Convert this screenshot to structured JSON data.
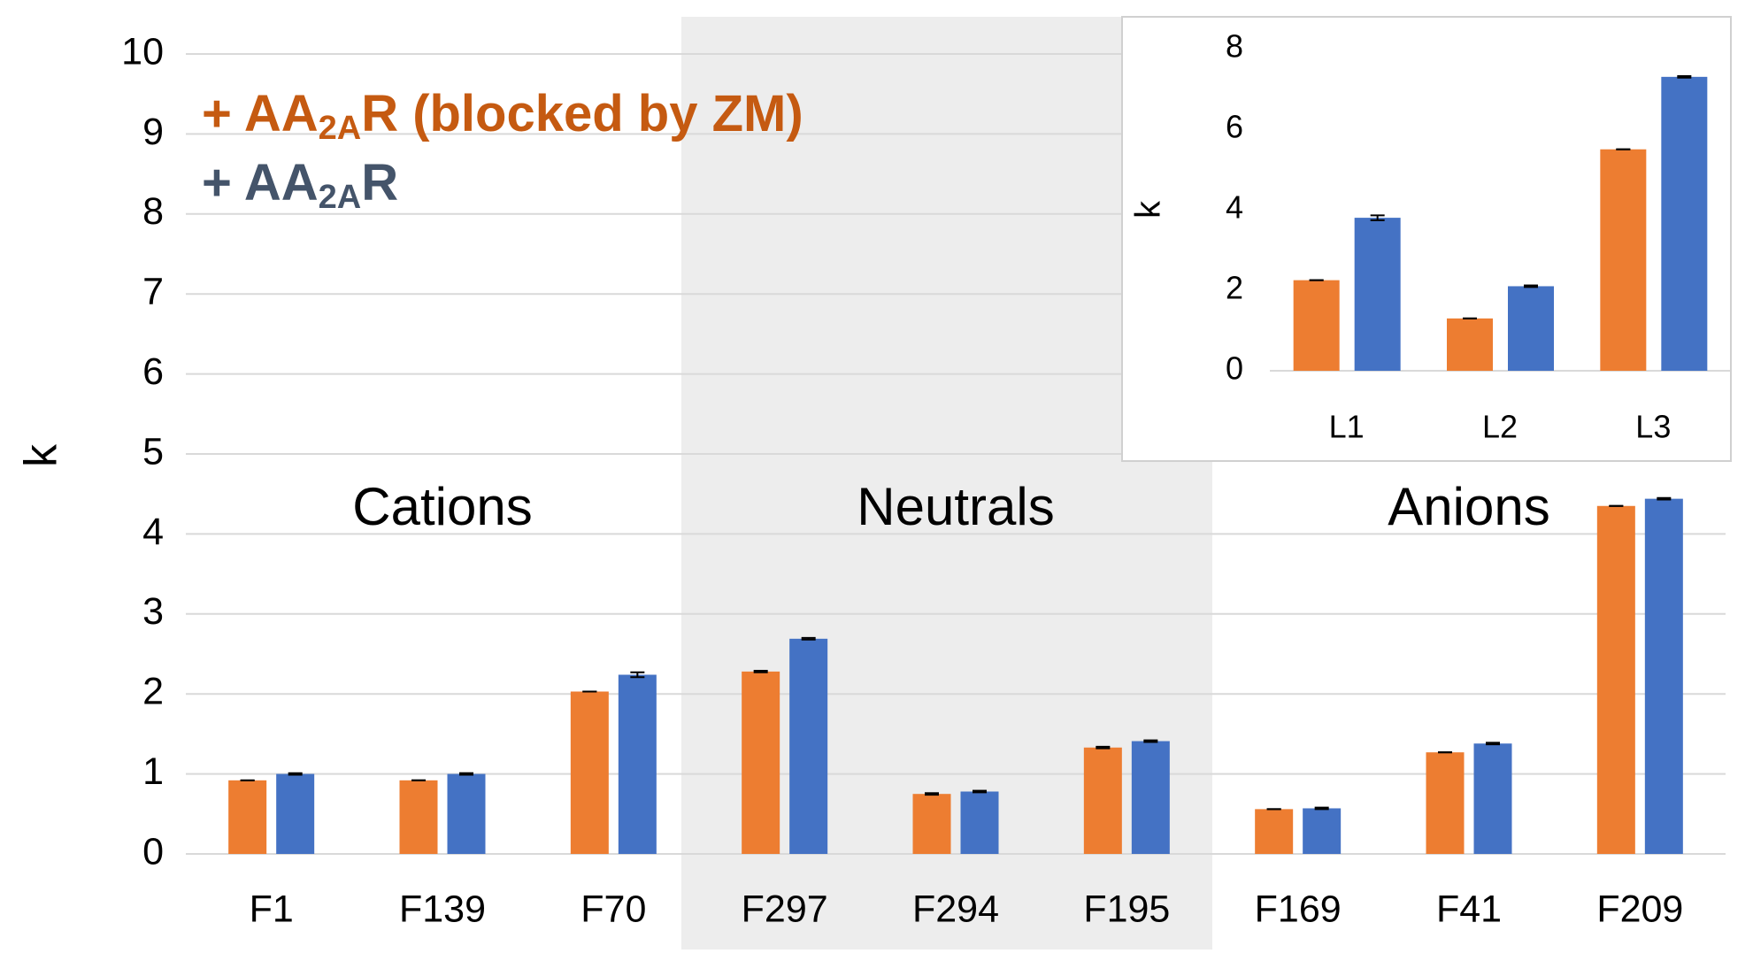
{
  "chart_data": [
    {
      "type": "bar",
      "y_label": "k",
      "categories": [
        "F1",
        "F139",
        "F70",
        "F297",
        "F294",
        "F195",
        "F169",
        "F41",
        "F209"
      ],
      "groups": [
        {
          "label": "Cations",
          "shaded": false
        },
        {
          "label": "Neutrals",
          "shaded": true
        },
        {
          "label": "Anions",
          "shaded": false
        }
      ],
      "series": [
        {
          "name": "+ AA2AR (blocked by ZM)",
          "subscript": "2A",
          "color": "#ed7d31",
          "values": [
            0.92,
            0.92,
            2.03,
            2.28,
            0.75,
            1.33,
            0.56,
            1.27,
            4.35
          ],
          "errors": [
            0,
            0,
            0,
            0.01,
            0.01,
            0.01,
            0,
            0,
            0
          ]
        },
        {
          "name": "+ AA2AR",
          "subscript": "2A",
          "color": "#4472c4",
          "values": [
            1.0,
            1.0,
            2.24,
            2.69,
            0.78,
            1.41,
            0.57,
            1.38,
            4.44
          ],
          "errors": [
            0.01,
            0.01,
            0.03,
            0.01,
            0.01,
            0.01,
            0.01,
            0.01,
            0.01
          ]
        }
      ],
      "legend_colors": [
        "#c55a11",
        "#44546a"
      ],
      "ylim": [
        0,
        10
      ],
      "yticks": [
        0,
        1,
        2,
        3,
        4,
        5,
        6,
        7,
        8,
        9,
        10
      ],
      "grid": true
    },
    {
      "type": "bar",
      "y_label": "k",
      "categories": [
        "L1",
        "L2",
        "L3"
      ],
      "series": [
        {
          "color": "#ed7d31",
          "values": [
            2.25,
            1.3,
            5.5
          ],
          "errors": [
            0,
            0,
            0
          ]
        },
        {
          "color": "#4472c4",
          "values": [
            3.8,
            2.1,
            7.3
          ],
          "errors": [
            0.06,
            0.02,
            0.02
          ]
        }
      ],
      "ylim": [
        0,
        8
      ],
      "yticks": [
        0,
        2,
        4,
        6,
        8
      ],
      "grid": false
    }
  ]
}
